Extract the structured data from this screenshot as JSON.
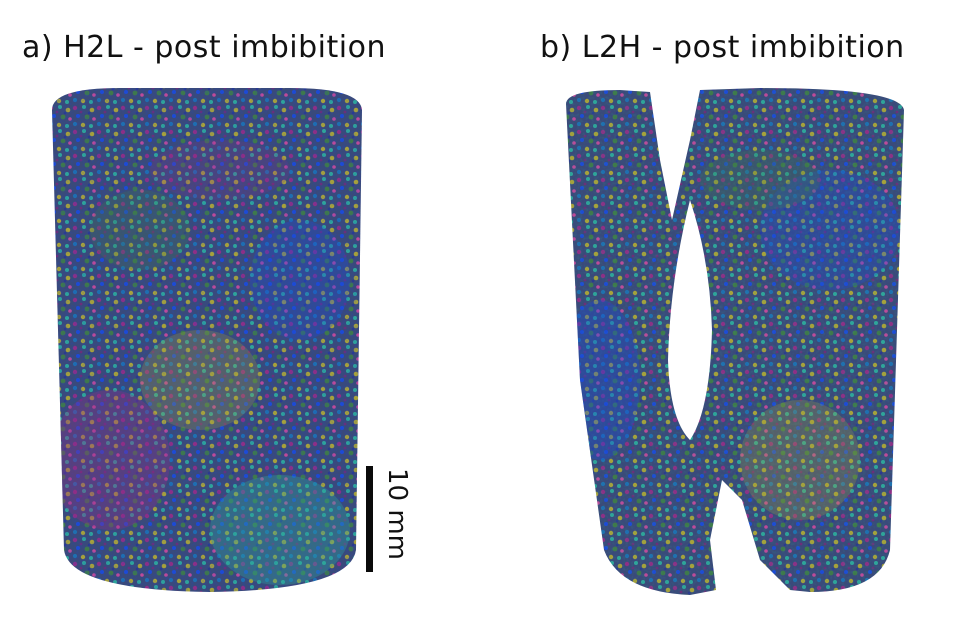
{
  "figure": {
    "panel_a": {
      "label": "a) H2L - post imbibition"
    },
    "panel_b": {
      "label": "b) L2H - post imbibition"
    },
    "scale_bar": {
      "label": "10 mm"
    },
    "palette": [
      "#2b3a8f",
      "#1f6fb0",
      "#2fa59a",
      "#8e2f86",
      "#a8a23a",
      "#3f7a4a",
      "#4a4f9c",
      "#c04a9a",
      "#1d4bd6"
    ]
  }
}
